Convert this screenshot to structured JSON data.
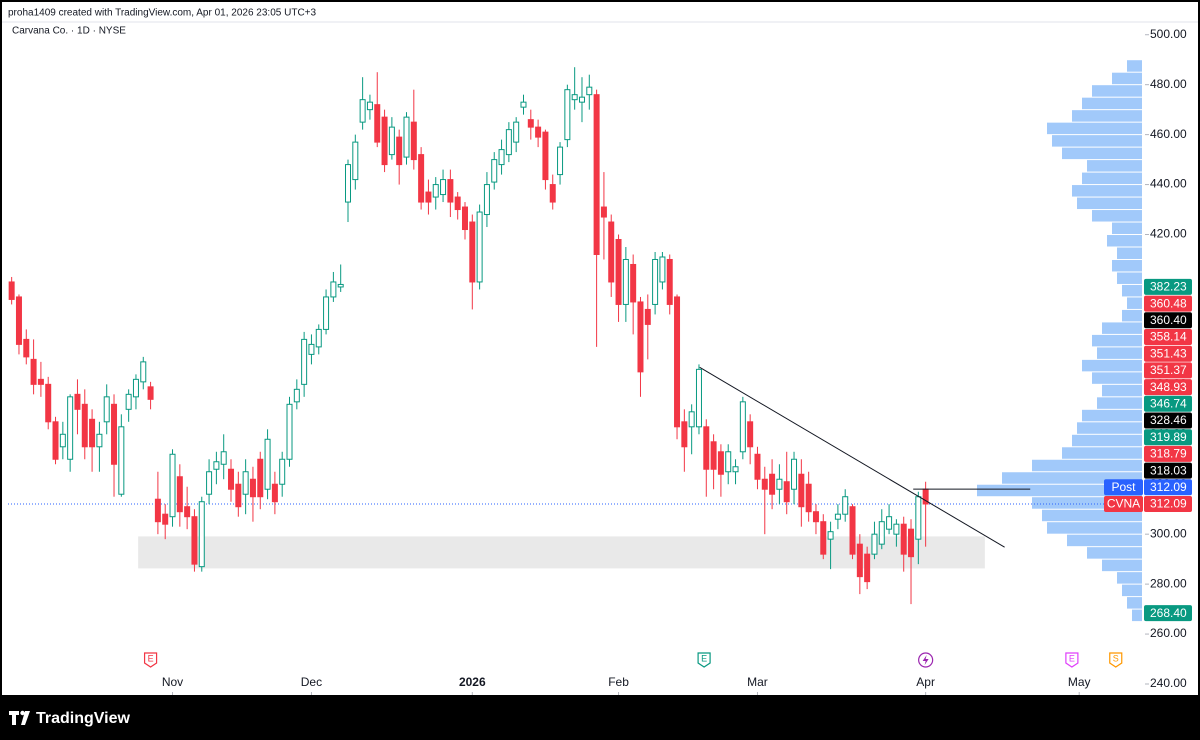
{
  "header": {
    "text": "proha1409 created with TradingView.com, Apr 01, 2026 23:05 UTC+3"
  },
  "footer": {
    "brand": "TradingView"
  },
  "chart_data": {
    "type": "candlestick",
    "title": "Carvana Co. · 1D · NYSE",
    "categories": [
      null,
      null,
      null,
      null,
      null,
      null,
      null,
      null,
      null,
      null,
      null,
      null,
      null,
      null,
      null,
      null,
      null,
      null,
      null,
      null,
      null,
      null,
      null,
      null,
      null,
      null,
      null,
      null,
      null,
      null,
      null,
      null,
      null,
      null,
      null,
      null,
      null,
      null,
      null,
      null,
      null,
      null,
      null,
      null,
      null,
      null,
      null,
      null,
      null,
      null,
      null,
      null,
      null,
      null,
      null,
      null,
      null,
      null,
      null,
      null,
      null,
      null,
      null,
      null,
      null,
      null,
      null,
      null,
      null,
      null,
      null,
      null,
      null,
      null,
      null,
      null,
      null,
      null,
      null,
      null,
      null,
      null,
      null,
      null,
      null,
      null,
      null,
      null,
      null,
      null,
      null,
      null,
      null,
      null,
      null,
      null,
      null,
      null,
      null,
      null,
      null,
      null,
      null,
      null,
      null,
      null,
      null,
      null,
      null,
      null,
      null,
      null,
      null,
      null,
      null,
      null,
      null,
      null,
      null,
      null,
      null,
      null,
      null,
      null,
      null,
      null
    ],
    "open": [
      401,
      395,
      378,
      370,
      362,
      360,
      345,
      335,
      330,
      356,
      352,
      346,
      335,
      345,
      352,
      316,
      350,
      355,
      361,
      359,
      314,
      308,
      307,
      323,
      311,
      307,
      287,
      316,
      326,
      328,
      326,
      320,
      316,
      322,
      330,
      318,
      320,
      320,
      330,
      353,
      360,
      372,
      375,
      382,
      395,
      399,
      433,
      442,
      465,
      470,
      472,
      467,
      452,
      459,
      451,
      465,
      452,
      437,
      435,
      436,
      442,
      435,
      431,
      425,
      401,
      428,
      441,
      448,
      452,
      457,
      471,
      466,
      463,
      461,
      440,
      444,
      458,
      474,
      473,
      476,
      476,
      431,
      425,
      418,
      392,
      408,
      393,
      390,
      392,
      401,
      410,
      395,
      345,
      343,
      343,
      343,
      337,
      333,
      325,
      325,
      333,
      345,
      332,
      322,
      324,
      318,
      321,
      318,
      324,
      320,
      309,
      305,
      298,
      306,
      308,
      311,
      296,
      292,
      292,
      296,
      302,
      300,
      304,
      302,
      298,
      318
    ],
    "high": [
      403,
      396,
      382,
      378,
      369,
      363,
      347,
      345,
      356,
      362,
      358,
      350,
      345,
      360,
      356,
      348,
      358,
      364,
      371,
      361,
      325,
      312,
      334,
      328,
      319,
      310,
      315,
      330,
      333,
      340,
      330,
      325,
      330,
      327,
      333,
      342,
      325,
      333,
      355,
      362,
      381,
      380,
      384,
      398,
      405,
      408,
      450,
      460,
      483,
      476,
      485,
      470,
      467,
      462,
      469,
      478,
      455,
      442,
      443,
      446,
      446,
      437,
      433,
      428,
      432,
      445,
      453,
      458,
      465,
      467,
      476,
      470,
      466,
      462,
      444,
      457,
      480,
      487,
      483,
      484,
      478,
      445,
      428,
      420,
      415,
      412,
      395,
      396,
      413,
      413,
      412,
      396,
      350,
      352,
      368,
      346,
      340,
      336,
      336,
      330,
      355,
      348,
      335,
      327,
      330,
      328,
      333,
      333,
      330,
      325,
      312,
      308,
      305,
      312,
      318,
      312,
      300,
      295,
      305,
      310,
      312,
      306,
      307,
      306,
      317,
      321
    ],
    "low": [
      392,
      372,
      368,
      356,
      355,
      342,
      328,
      330,
      325,
      340,
      330,
      325,
      325,
      340,
      315,
      315,
      345,
      350,
      358,
      350,
      300,
      298,
      303,
      303,
      302,
      285,
      285,
      312,
      320,
      322,
      313,
      307,
      308,
      305,
      310,
      314,
      308,
      315,
      327,
      350,
      355,
      368,
      372,
      380,
      393,
      397,
      425,
      438,
      462,
      466,
      455,
      445,
      450,
      440,
      448,
      446,
      430,
      428,
      430,
      433,
      427,
      426,
      418,
      390,
      398,
      423,
      438,
      444,
      449,
      453,
      468,
      458,
      455,
      438,
      430,
      440,
      455,
      470,
      465,
      470,
      375,
      410,
      395,
      385,
      385,
      380,
      355,
      370,
      388,
      398,
      388,
      338,
      325,
      332,
      340,
      315,
      318,
      315,
      320,
      320,
      330,
      328,
      318,
      300,
      310,
      312,
      308,
      312,
      303,
      305,
      300,
      290,
      286,
      302,
      305,
      290,
      276,
      278,
      290,
      294,
      300,
      295,
      285,
      272,
      288,
      295
    ],
    "close": [
      394,
      376,
      371,
      360,
      360,
      345,
      330,
      340,
      355,
      350,
      335,
      335,
      340,
      355,
      328,
      343,
      356,
      362,
      369,
      354,
      305,
      304,
      332,
      309,
      307,
      288,
      313,
      325,
      329,
      333,
      318,
      311,
      325,
      315,
      315,
      338,
      313,
      330,
      352,
      358,
      378,
      376,
      382,
      395,
      401,
      400,
      448,
      457,
      474,
      473,
      457,
      448,
      463,
      448,
      467,
      450,
      433,
      433,
      440,
      442,
      433,
      430,
      422,
      401,
      429,
      440,
      450,
      454,
      462,
      465,
      473,
      463,
      459,
      442,
      433,
      455,
      478,
      476,
      475,
      479,
      412,
      427,
      401,
      392,
      410,
      393,
      365,
      384,
      410,
      411,
      392,
      343,
      335,
      349,
      366,
      326,
      326,
      324,
      333,
      327,
      353,
      335,
      322,
      318,
      316,
      322,
      313,
      330,
      311,
      309,
      305,
      292,
      301,
      308,
      315,
      292,
      283,
      281,
      300,
      305,
      307,
      304,
      292,
      291,
      315,
      312.09
    ],
    "up_color": "#089981",
    "down_color": "#f23645",
    "xlim": [
      -0.5,
      155
    ],
    "xticks": [
      {
        "value": 22,
        "label": "Nov"
      },
      {
        "value": 41,
        "label": "Dec"
      },
      {
        "value": 63,
        "label": "2026"
      },
      {
        "value": 83,
        "label": "Feb"
      },
      {
        "value": 102,
        "label": "Mar"
      },
      {
        "value": 125,
        "label": "Apr"
      },
      {
        "value": 146,
        "label": "May"
      }
    ],
    "ylim": [
      235.6,
      505.1
    ],
    "yticks": [
      {
        "value": 240,
        "label": "240.00"
      },
      {
        "value": 260,
        "label": "260.00"
      },
      {
        "value": 280,
        "label": "280.00"
      },
      {
        "value": 300,
        "label": "300.00"
      },
      {
        "value": 320,
        "label": "320.00"
      },
      {
        "value": 340,
        "label": "340.00"
      },
      {
        "value": 360,
        "label": "360.00"
      },
      {
        "value": 380,
        "label": "380.00"
      },
      {
        "value": 400,
        "label": "400.00"
      },
      {
        "value": 420,
        "label": "420.00"
      },
      {
        "value": 440,
        "label": "440.00"
      },
      {
        "value": 460,
        "label": "460.00"
      },
      {
        "value": 480,
        "label": "480.00"
      },
      {
        "value": 500,
        "label": "500.00"
      }
    ],
    "price_labels": [
      {
        "value": 382.23,
        "color": "#089981"
      },
      {
        "value": 360.48,
        "color": "#f23645"
      },
      {
        "value": 360.4,
        "label": "360.40",
        "color": "#000000"
      },
      {
        "value": 358.14,
        "color": "#f23645"
      },
      {
        "value": 351.43,
        "color": "#f23645"
      },
      {
        "value": 351.37,
        "color": "#f23645"
      },
      {
        "value": 348.93,
        "color": "#f23645"
      },
      {
        "value": 346.74,
        "color": "#089981"
      },
      {
        "value": 328.46,
        "color": "#000000"
      },
      {
        "value": 319.89,
        "color": "#089981"
      },
      {
        "value": 318.79,
        "color": "#f23645"
      },
      {
        "value": 318.03,
        "color": "#000000"
      },
      {
        "name": "Post",
        "value": 312.09,
        "color": "#2962ff"
      },
      {
        "name": "CVNA",
        "value": 312.09,
        "color": "#f23645"
      },
      {
        "value": 268.4,
        "label": "268.40",
        "color": "#089981"
      }
    ],
    "volume_profile": {
      "color": "#90bff9",
      "bins": [
        265,
        270,
        275,
        280,
        285,
        290,
        295,
        300,
        305,
        310,
        315,
        320,
        325,
        330,
        335,
        340,
        345,
        350,
        355,
        360,
        365,
        370,
        375,
        380,
        385,
        390,
        395,
        400,
        405,
        410,
        415,
        420,
        425,
        430,
        435,
        440,
        445,
        450,
        455,
        460,
        465,
        470,
        475,
        480,
        485,
        490
      ],
      "values": [
        10,
        15,
        20,
        25,
        40,
        55,
        75,
        95,
        100,
        110,
        165,
        140,
        110,
        80,
        70,
        65,
        60,
        45,
        40,
        50,
        60,
        45,
        50,
        40,
        20,
        15,
        20,
        25,
        30,
        25,
        35,
        30,
        50,
        65,
        70,
        60,
        55,
        80,
        90,
        95,
        70,
        60,
        50,
        30,
        15
      ]
    },
    "drawings": {
      "trendline": {
        "x": [
          94.1,
          135.8
        ],
        "y": [
          366.8,
          294.8
        ]
      },
      "hline": {
        "x": [
          123.3,
          139.3
        ],
        "y": 318.03
      },
      "zone": {
        "x": [
          17.3,
          133.1
        ],
        "y": [
          286.3,
          299.1
        ]
      }
    },
    "events": [
      {
        "label": "E",
        "x": 19,
        "color": "#f23645"
      },
      {
        "label": "E",
        "x": 94.7,
        "color": "#089981"
      },
      {
        "x": 125,
        "color": "#9c27b0"
      },
      {
        "label": "E",
        "x": 145,
        "color": "#e040fb"
      },
      {
        "label": "S",
        "x": 151,
        "color": "#ff9800"
      }
    ]
  }
}
